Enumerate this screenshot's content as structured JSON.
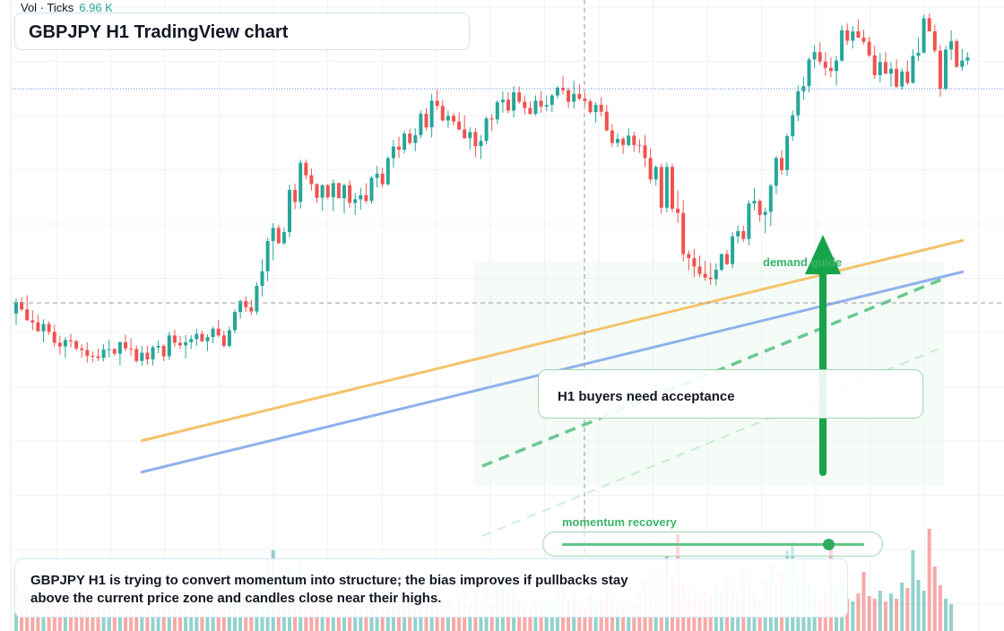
{
  "header": {
    "title": "GBPJPY H1 TradingView chart",
    "volume_label": "Vol · Ticks",
    "volume_value": "6.96 K"
  },
  "annotations": {
    "callout": "H1 buyers need acceptance",
    "demand_label": "demand guide",
    "momentum_label": "momentum recovery",
    "momentum_level": 0.88,
    "note": "GBPJPY H1 is trying to convert momentum into structure; the bias improves if pullbacks stay above the current price zone and candles close near their highs."
  },
  "colors": {
    "up": "#26a69a",
    "down": "#ef5350",
    "resistance_line": "#f5c26b",
    "support_line": "#8fb1ee",
    "demand_arrow": "#16a34a",
    "channel": "#5cc486"
  },
  "icons": [
    "up-arrow-icon"
  ],
  "chart_data": {
    "type": "candlestick",
    "title": "GBPJPY H1 TradingView chart",
    "xlabel": "",
    "ylabel": "",
    "grid": true,
    "ylim": [
      0,
      100
    ],
    "candles": [
      [
        42.3,
        45.2,
        40.1,
        44.5
      ],
      [
        44.5,
        45.4,
        42.8,
        43.1
      ],
      [
        43.1,
        45.8,
        40.9,
        41.0
      ],
      [
        41.0,
        42.9,
        39.1,
        40.6
      ],
      [
        40.6,
        42.0,
        38.8,
        38.9
      ],
      [
        38.9,
        41.2,
        36.8,
        40.3
      ],
      [
        40.3,
        40.8,
        38.2,
        38.8
      ],
      [
        38.8,
        40.2,
        35.9,
        36.7
      ],
      [
        36.7,
        38.0,
        34.4,
        36.0
      ],
      [
        36.0,
        37.8,
        33.8,
        37.2
      ],
      [
        37.2,
        38.4,
        35.8,
        37.0
      ],
      [
        37.0,
        37.3,
        35.2,
        35.6
      ],
      [
        35.6,
        36.4,
        33.9,
        35.3
      ],
      [
        35.3,
        36.8,
        32.9,
        34.2
      ],
      [
        34.2,
        35.0,
        33.0,
        34.1
      ],
      [
        34.1,
        35.6,
        33.2,
        33.8
      ],
      [
        33.8,
        36.4,
        33.1,
        35.4
      ],
      [
        35.4,
        37.3,
        33.9,
        35.5
      ],
      [
        35.5,
        35.7,
        34.2,
        34.6
      ],
      [
        34.6,
        37.0,
        32.4,
        36.8
      ],
      [
        36.8,
        38.3,
        35.1,
        35.6
      ],
      [
        35.6,
        37.6,
        34.2,
        35.5
      ],
      [
        35.5,
        36.2,
        32.9,
        33.2
      ],
      [
        33.2,
        36.1,
        32.3,
        34.8
      ],
      [
        34.8,
        36.1,
        32.5,
        33.5
      ],
      [
        33.5,
        36.2,
        32.3,
        35.8
      ],
      [
        35.8,
        37.1,
        34.7,
        36.1
      ],
      [
        36.1,
        36.4,
        33.2,
        34.1
      ],
      [
        34.1,
        38.8,
        33.4,
        38.1
      ],
      [
        38.1,
        39.2,
        35.9,
        36.7
      ],
      [
        36.7,
        38.0,
        35.5,
        36.2
      ],
      [
        36.2,
        38.2,
        33.7,
        36.8
      ],
      [
        36.8,
        38.2,
        35.5,
        37.4
      ],
      [
        37.4,
        39.4,
        36.1,
        38.4
      ],
      [
        38.4,
        39.0,
        36.8,
        37.0
      ],
      [
        37.0,
        38.3,
        35.1,
        37.8
      ],
      [
        37.8,
        39.8,
        36.6,
        39.4
      ],
      [
        39.4,
        41.0,
        37.8,
        38.1
      ],
      [
        38.1,
        39.0,
        35.8,
        36.1
      ],
      [
        36.1,
        39.8,
        35.7,
        39.1
      ],
      [
        39.1,
        43.1,
        38.5,
        42.6
      ],
      [
        42.6,
        45.0,
        41.3,
        44.7
      ],
      [
        44.7,
        45.6,
        42.6,
        43.5
      ],
      [
        43.5,
        45.0,
        42.0,
        42.7
      ],
      [
        42.7,
        48.3,
        42.1,
        47.6
      ],
      [
        47.6,
        52.7,
        45.6,
        50.4
      ],
      [
        50.4,
        56.8,
        48.5,
        56.2
      ],
      [
        56.2,
        59.6,
        52.5,
        58.7
      ],
      [
        58.7,
        59.3,
        55.6,
        55.8
      ],
      [
        55.8,
        58.8,
        55.4,
        57.9
      ],
      [
        57.9,
        67.0,
        56.9,
        66.0
      ],
      [
        66.0,
        67.2,
        62.3,
        63.7
      ],
      [
        63.7,
        71.8,
        62.4,
        71.2
      ],
      [
        71.2,
        71.8,
        68.0,
        68.8
      ],
      [
        68.8,
        70.1,
        65.9,
        67.1
      ],
      [
        67.1,
        67.3,
        63.5,
        64.5
      ],
      [
        64.5,
        67.1,
        62.0,
        66.9
      ],
      [
        66.9,
        67.2,
        64.2,
        64.6
      ],
      [
        64.6,
        68.0,
        61.9,
        67.3
      ],
      [
        67.3,
        67.4,
        64.4,
        64.4
      ],
      [
        64.4,
        67.2,
        61.5,
        66.9
      ],
      [
        66.9,
        67.8,
        62.6,
        63.5
      ],
      [
        63.5,
        65.4,
        61.2,
        64.2
      ],
      [
        64.2,
        66.4,
        62.2,
        65.0
      ],
      [
        65.0,
        67.3,
        63.5,
        63.9
      ],
      [
        63.9,
        68.6,
        63.4,
        68.3
      ],
      [
        68.3,
        70.6,
        66.5,
        69.1
      ],
      [
        69.1,
        70.2,
        66.5,
        67.1
      ],
      [
        67.1,
        72.5,
        66.8,
        72.1
      ],
      [
        72.1,
        75.6,
        70.3,
        74.3
      ],
      [
        74.3,
        76.2,
        72.1,
        73.7
      ],
      [
        73.7,
        77.4,
        73.0,
        76.8
      ],
      [
        76.8,
        77.7,
        74.6,
        75.0
      ],
      [
        75.0,
        77.8,
        73.4,
        76.5
      ],
      [
        76.5,
        81.2,
        75.9,
        80.6
      ],
      [
        80.6,
        81.7,
        77.4,
        78.0
      ],
      [
        78.0,
        84.4,
        76.1,
        83.1
      ],
      [
        83.1,
        85.2,
        81.4,
        82.1
      ],
      [
        82.1,
        83.2,
        79.1,
        79.3
      ],
      [
        79.3,
        81.2,
        77.9,
        80.2
      ],
      [
        80.2,
        80.7,
        78.4,
        79.1
      ],
      [
        79.1,
        80.8,
        77.4,
        77.6
      ],
      [
        77.6,
        80.3,
        75.8,
        75.9
      ],
      [
        75.9,
        78.0,
        73.8,
        77.1
      ],
      [
        77.1,
        77.9,
        72.3,
        74.4
      ],
      [
        74.4,
        76.5,
        71.9,
        75.4
      ],
      [
        75.4,
        80.1,
        74.7,
        79.7
      ],
      [
        79.7,
        80.5,
        77.3,
        79.5
      ],
      [
        79.5,
        83.2,
        78.7,
        82.8
      ],
      [
        82.8,
        84.9,
        80.8,
        83.3
      ],
      [
        83.3,
        84.7,
        80.7,
        81.2
      ],
      [
        81.2,
        85.9,
        79.9,
        84.7
      ],
      [
        84.7,
        85.8,
        82.5,
        82.9
      ],
      [
        82.9,
        84.1,
        80.5,
        81.7
      ],
      [
        81.7,
        82.9,
        80.4,
        80.6
      ],
      [
        80.6,
        84.1,
        80.2,
        83.1
      ],
      [
        83.1,
        84.9,
        80.8,
        82.0
      ],
      [
        82.0,
        84.1,
        81.1,
        82.3
      ],
      [
        82.3,
        84.4,
        80.9,
        84.1
      ],
      [
        84.1,
        85.9,
        83.5,
        85.6
      ],
      [
        85.6,
        87.8,
        84.3,
        85.1
      ],
      [
        85.1,
        85.6,
        81.7,
        82.9
      ],
      [
        82.9,
        86.9,
        81.6,
        84.4
      ],
      [
        84.4,
        86.3,
        83.1,
        83.5
      ],
      [
        83.5,
        84.6,
        82.2,
        83.0
      ],
      [
        83.0,
        83.4,
        80.6,
        80.9
      ],
      [
        80.9,
        82.8,
        78.9,
        82.3
      ],
      [
        82.3,
        83.8,
        80.1,
        81.0
      ],
      [
        81.0,
        82.3,
        77.2,
        77.4
      ],
      [
        77.4,
        78.6,
        74.2,
        75.0
      ],
      [
        75.0,
        76.9,
        74.2,
        75.8
      ],
      [
        75.8,
        76.2,
        72.9,
        74.6
      ],
      [
        74.6,
        77.8,
        74.3,
        76.4
      ],
      [
        76.4,
        77.2,
        73.3,
        74.6
      ],
      [
        74.6,
        75.7,
        73.1,
        74.5
      ],
      [
        74.5,
        76.5,
        70.4,
        72.1
      ],
      [
        72.1,
        73.9,
        67.3,
        68.0
      ],
      [
        68.0,
        70.7,
        66.8,
        70.4
      ],
      [
        70.4,
        71.0,
        61.4,
        62.6
      ],
      [
        62.6,
        71.2,
        61.7,
        70.4
      ],
      [
        70.4,
        71.0,
        61.7,
        62.4
      ],
      [
        62.4,
        65.9,
        59.7,
        61.6
      ],
      [
        61.6,
        64.0,
        52.3,
        53.7
      ],
      [
        53.7,
        54.4,
        50.6,
        52.9
      ],
      [
        52.9,
        54.7,
        49.3,
        51.3
      ],
      [
        51.3,
        53.4,
        49.3,
        49.9
      ],
      [
        49.9,
        52.4,
        48.6,
        49.2
      ],
      [
        49.2,
        52.0,
        47.8,
        48.9
      ],
      [
        48.9,
        51.9,
        47.7,
        50.7
      ],
      [
        50.7,
        53.8,
        50.4,
        53.7
      ],
      [
        53.7,
        54.5,
        51.6,
        51.8
      ],
      [
        51.8,
        57.9,
        51.0,
        57.1
      ],
      [
        57.1,
        59.2,
        55.8,
        58.1
      ],
      [
        58.1,
        59.1,
        56.0,
        56.6
      ],
      [
        56.6,
        64.0,
        55.4,
        63.4
      ],
      [
        63.4,
        66.3,
        62.1,
        63.9
      ],
      [
        63.9,
        64.2,
        59.9,
        61.2
      ],
      [
        61.2,
        62.6,
        57.7,
        61.8
      ],
      [
        61.8,
        67.2,
        59.1,
        66.8
      ],
      [
        66.8,
        72.5,
        65.2,
        72.1
      ],
      [
        72.1,
        73.6,
        68.9,
        69.8
      ],
      [
        69.8,
        76.8,
        68.7,
        76.3
      ],
      [
        76.3,
        81.2,
        75.4,
        80.3
      ],
      [
        80.3,
        86.0,
        79.2,
        84.9
      ],
      [
        84.9,
        87.7,
        83.2,
        85.9
      ],
      [
        85.9,
        91.4,
        84.7,
        91.0
      ],
      [
        91.0,
        93.8,
        89.4,
        92.4
      ],
      [
        92.4,
        94.3,
        90.0,
        90.6
      ],
      [
        90.6,
        92.4,
        87.9,
        89.4
      ],
      [
        89.4,
        91.4,
        87.6,
        88.8
      ],
      [
        88.8,
        91.7,
        86.0,
        90.8
      ],
      [
        90.8,
        97.6,
        90.5,
        96.6
      ],
      [
        96.6,
        97.9,
        93.8,
        94.6
      ],
      [
        94.6,
        97.4,
        93.1,
        96.4
      ],
      [
        96.4,
        98.7,
        95.1,
        95.2
      ],
      [
        95.2,
        96.7,
        93.9,
        94.4
      ],
      [
        94.4,
        95.3,
        91.5,
        91.8
      ],
      [
        91.8,
        93.6,
        87.3,
        88.0
      ],
      [
        88.0,
        92.2,
        86.6,
        90.5
      ],
      [
        90.5,
        92.4,
        88.2,
        88.3
      ],
      [
        88.3,
        90.5,
        85.8,
        89.2
      ],
      [
        89.2,
        91.0,
        85.5,
        85.8
      ],
      [
        85.8,
        89.3,
        85.2,
        88.7
      ],
      [
        88.7,
        90.8,
        86.1,
        86.5
      ],
      [
        86.5,
        92.9,
        86.4,
        91.7
      ],
      [
        91.7,
        95.2,
        90.7,
        92.3
      ],
      [
        92.3,
        99.6,
        92.2,
        98.9
      ],
      [
        98.9,
        99.8,
        96.4,
        96.4
      ],
      [
        96.4,
        97.7,
        92.3,
        92.7
      ],
      [
        92.7,
        93.8,
        83.9,
        85.4
      ],
      [
        85.4,
        93.6,
        85.1,
        92.9
      ],
      [
        92.9,
        96.6,
        90.9,
        94.5
      ],
      [
        94.5,
        94.9,
        89.4,
        89.6
      ],
      [
        89.6,
        93.0,
        88.8,
        90.8
      ],
      [
        90.8,
        92.4,
        90.0,
        91.4
      ]
    ],
    "volume": [
      18,
      12,
      14,
      9,
      11,
      16,
      10,
      8,
      13,
      9,
      12,
      8,
      10,
      15,
      9,
      11,
      10,
      13,
      8,
      12,
      9,
      14,
      10,
      8,
      11,
      9,
      13,
      10,
      12,
      9,
      11,
      8,
      10,
      14,
      9,
      12,
      10,
      13,
      8,
      11,
      15,
      18,
      12,
      10,
      14,
      20,
      26,
      30,
      16,
      12,
      24,
      17,
      26,
      20,
      12,
      15,
      10,
      13,
      9,
      14,
      11,
      12,
      9,
      10,
      12,
      15,
      13,
      10,
      16,
      18,
      12,
      15,
      10,
      12,
      20,
      14,
      22,
      17,
      12,
      11,
      9,
      13,
      15,
      10,
      14,
      11,
      16,
      10,
      18,
      21,
      14,
      19,
      12,
      10,
      9,
      13,
      11,
      10,
      12,
      17,
      15,
      12,
      14,
      10,
      9,
      13,
      11,
      12,
      16,
      13,
      10,
      12,
      11,
      10,
      14,
      19,
      13,
      25,
      22,
      28,
      20,
      36,
      18,
      16,
      14,
      12,
      15,
      13,
      17,
      14,
      21,
      16,
      13,
      23,
      18,
      14,
      12,
      19,
      25,
      17,
      22,
      30,
      33,
      20,
      27,
      19,
      14,
      12,
      15,
      31,
      16,
      20,
      12,
      11,
      14,
      22,
      13,
      12,
      15,
      11,
      14,
      12,
      18,
      16,
      30,
      19,
      15,
      38,
      24,
      17,
      12,
      10
    ]
  }
}
